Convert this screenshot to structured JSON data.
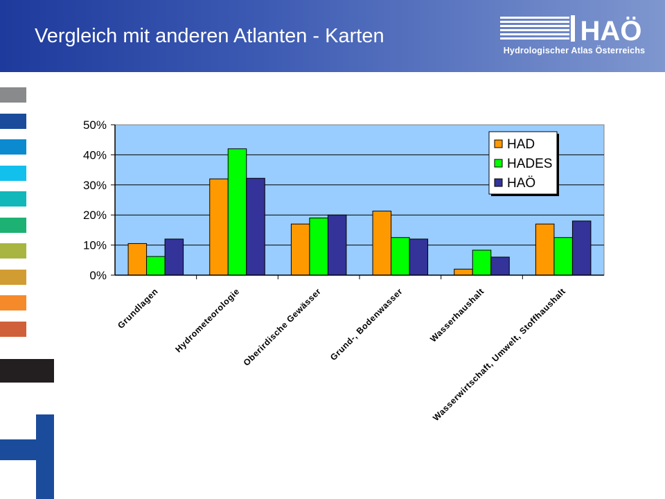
{
  "header": {
    "title": "Vergleich mit anderen Atlanten - Karten",
    "logo_text": "Hydrologischer Atlas Österreichs",
    "logo_letters": "HAÖ"
  },
  "colors": {
    "header_start": "#1e3a9c",
    "header_end": "#7f97cf",
    "plot_bg": "#99ccff",
    "swatches": [
      "#898a8c",
      "#1b4c9c",
      "#0c8ad0",
      "#11c0ec",
      "#12b7b9",
      "#1db273",
      "#a8b540",
      "#d19d32",
      "#f58a2a",
      "#d0603a"
    ]
  },
  "chart_data": {
    "type": "bar",
    "categories": [
      "Grundlagen",
      "Hydrometeorologie",
      "Oberirdische Gewässer",
      "Grund-, Bodenwasser",
      "Wasserhaushalt",
      "Wasserwirtschaft, Umwelt, Stoffhaushalt"
    ],
    "series": [
      {
        "name": "HAD",
        "color": "#ff9900",
        "values": [
          10.5,
          32,
          17,
          21.3,
          2,
          17
        ]
      },
      {
        "name": "HADES",
        "color": "#00ff00",
        "values": [
          6.2,
          42,
          19,
          12.5,
          8.3,
          12.5
        ]
      },
      {
        "name": "HAÖ",
        "color": "#333399",
        "values": [
          12,
          32.2,
          20,
          12,
          6,
          18
        ]
      }
    ],
    "yticks": [
      "0%",
      "10%",
      "20%",
      "30%",
      "40%",
      "50%"
    ],
    "ylim": [
      0,
      50
    ],
    "legend_position": "top-right",
    "grid": true
  }
}
